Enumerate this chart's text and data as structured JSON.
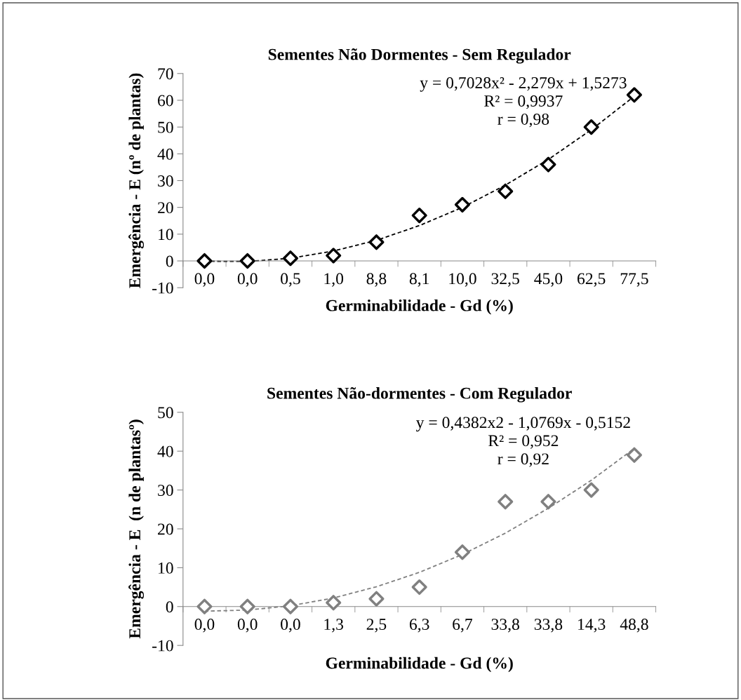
{
  "chart_data": [
    {
      "type": "scatter",
      "title": "Sementes Não Dormentes - Sem Regulador",
      "xlabel": "Germinabilidade - Gd (%)",
      "ylabel": "Emergência - E (nº de plantas)",
      "categories": [
        "0,0",
        "0,0",
        "0,5",
        "1,0",
        "8,8",
        "8,1",
        "10,0",
        "32,5",
        "45,0",
        "62,5",
        "77,5"
      ],
      "series": [
        {
          "color": "#000000",
          "marker": "diamond",
          "values": [
            0,
            0,
            1,
            2,
            7,
            17,
            21,
            26,
            36,
            50,
            62
          ]
        },
        {
          "type": "line",
          "color": "#000000",
          "marker": "none",
          "line_style": "dashed",
          "values": [
            -0.1,
            -0.2,
            1.0,
            3.7,
            7.7,
            13.2,
            20.0,
            28.3,
            37.9,
            49.0,
            61.5
          ]
        }
      ],
      "ylim": [
        -10,
        70
      ],
      "yticks": [
        -10,
        0,
        10,
        20,
        30,
        40,
        50,
        60,
        70
      ],
      "grid": false,
      "legend": false,
      "annotations": [
        "y = 0,7028x² - 2,279x + 1,5273",
        "R² = 0,9937",
        "r = 0,98"
      ]
    },
    {
      "type": "scatter",
      "title": "Sementes Não-dormentes - Com Regulador",
      "xlabel": "Germinabilidade - Gd (%)",
      "ylabel": "Emergência - E  (n de plantasº)",
      "categories": [
        "0,0",
        "0,0",
        "0,0",
        "1,3",
        "2,5",
        "6,3",
        "6,7",
        "33,8",
        "33,8",
        "14,3",
        "48,8"
      ],
      "series": [
        {
          "color": "#808080",
          "marker": "diamond",
          "values": [
            0,
            0,
            0,
            1,
            2,
            5,
            14,
            27,
            27,
            30,
            39
          ]
        },
        {
          "type": "line",
          "color": "#808080",
          "marker": "none",
          "line_style": "dashed",
          "values": [
            -1.2,
            -0.9,
            0.2,
            2.2,
            5.1,
            8.8,
            13.4,
            18.9,
            25.3,
            32.5,
            40.7
          ]
        }
      ],
      "ylim": [
        -10,
        50
      ],
      "yticks": [
        -10,
        0,
        10,
        20,
        30,
        40,
        50
      ],
      "grid": false,
      "legend": false,
      "annotations": [
        "y = 0,4382x2 - 1,0769x - 0,5152",
        "R² = 0,952",
        "r = 0,92"
      ]
    }
  ]
}
